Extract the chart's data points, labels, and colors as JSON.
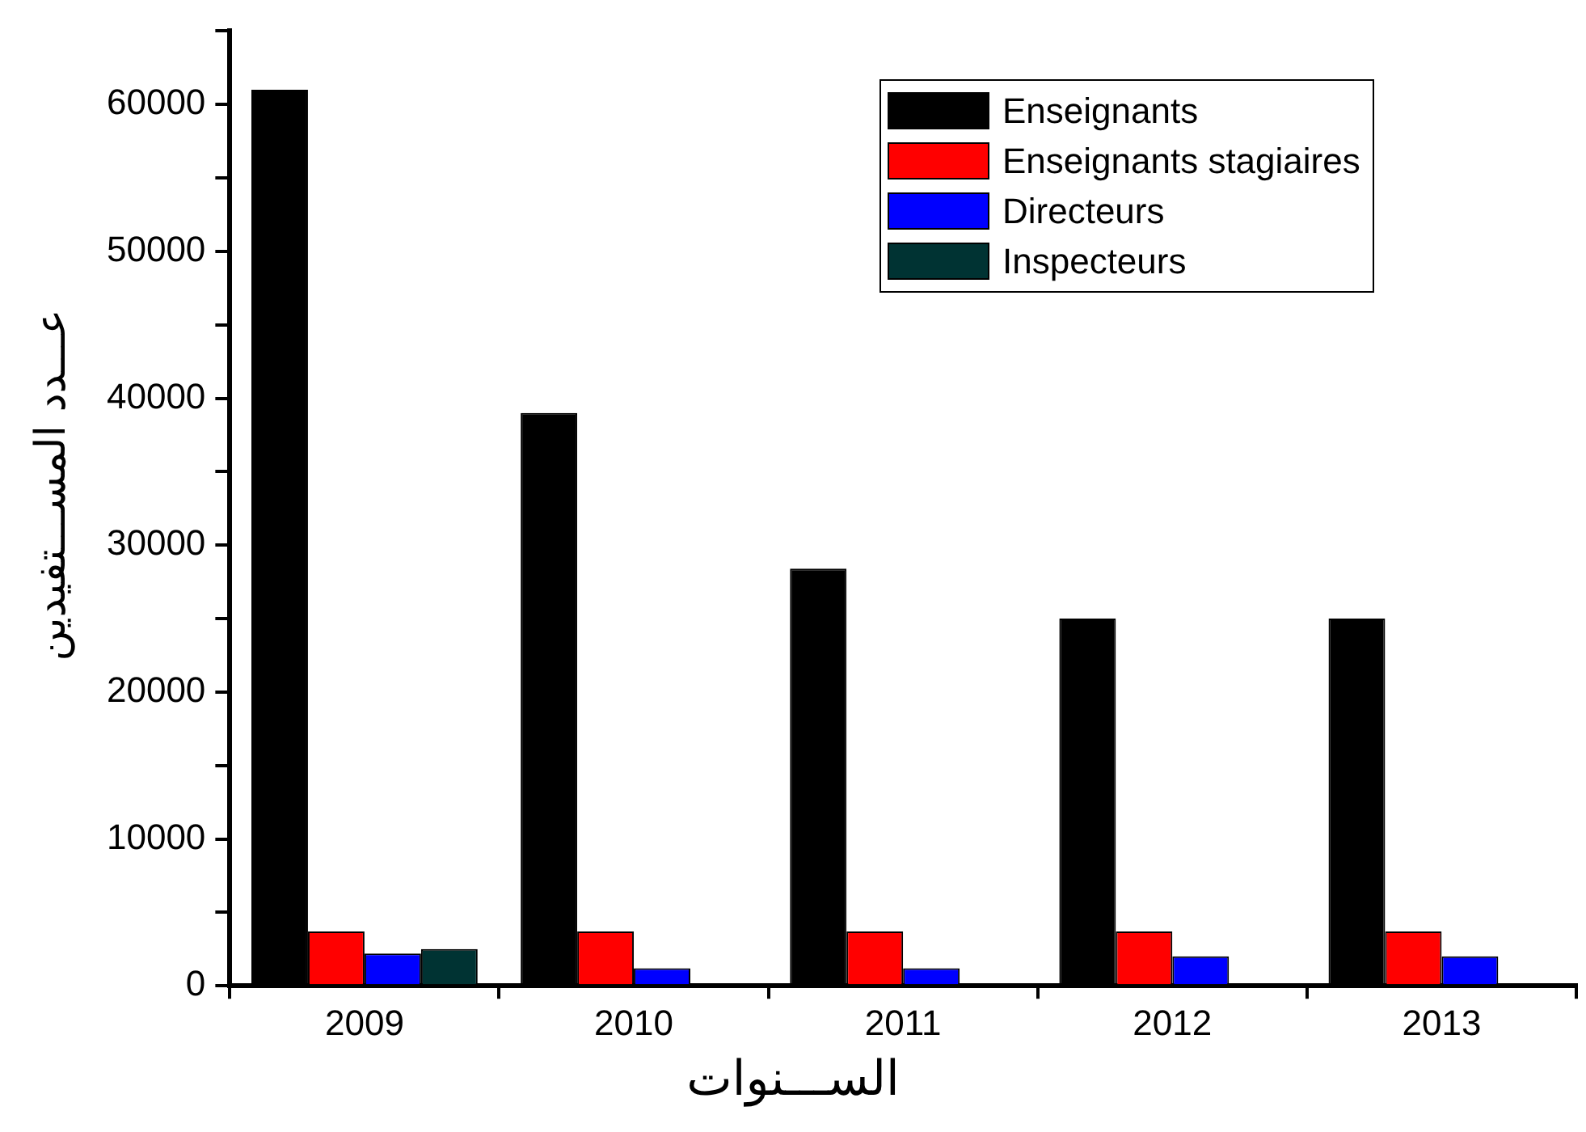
{
  "chart_data": {
    "type": "bar",
    "xlabel": "الســـنوات",
    "ylabel": "عـــدد المســـتفيدين",
    "categories": [
      "2009",
      "2010",
      "2011",
      "2012",
      "2013"
    ],
    "series": [
      {
        "name": "Enseignants",
        "color": "#000000",
        "values": [
          61000,
          39000,
          28400,
          25000,
          25000
        ]
      },
      {
        "name": "Enseignants stagiaires",
        "color": "#ff0000",
        "values": [
          3700,
          3700,
          3700,
          3700,
          3700
        ]
      },
      {
        "name": "Directeurs",
        "color": "#0000ff",
        "values": [
          2200,
          1200,
          1200,
          2000,
          2000
        ]
      },
      {
        "name": "Inspecteurs",
        "color": "#003333",
        "values": [
          2500,
          null,
          null,
          null,
          null
        ]
      }
    ],
    "ylim": [
      0,
      65000
    ],
    "yticks": [
      0,
      {
        "value": 5000,
        "label": null
      },
      10000,
      {
        "value": 15000,
        "label": null
      },
      20000,
      {
        "value": 25000,
        "label": null
      },
      30000,
      {
        "value": 35000,
        "label": null
      },
      40000,
      {
        "value": 45000,
        "label": null
      },
      50000,
      {
        "value": 55000,
        "label": null
      },
      60000,
      {
        "value": 65000,
        "label": null
      }
    ],
    "grid": false,
    "legend": "top right"
  }
}
